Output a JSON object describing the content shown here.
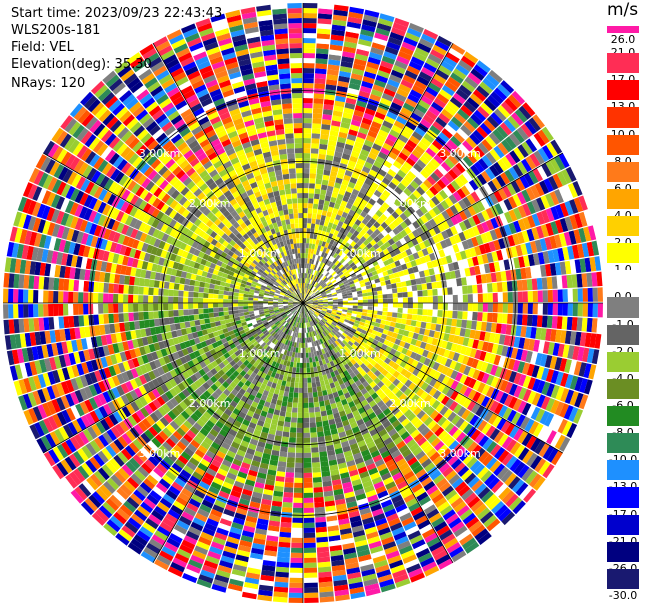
{
  "info": {
    "start_time": "Start time: 2023/09/23 22:43:43",
    "instrument": "WLS200s-181",
    "field": "Field: VEL",
    "elevation": "Elevation(deg): 35.30",
    "nrays": "NRays: 120"
  },
  "colorbar": {
    "unit": "m/s",
    "tick_labels": [
      "26.0",
      "21.0",
      "17.0",
      "13.0",
      "10.0",
      "8.0",
      "6.0",
      "4.0",
      "2.0",
      "1.0",
      "0.0",
      "-1.0",
      "-2.0",
      "-4.0",
      "-6.0",
      "-8.0",
      "-10.0",
      "-13.0",
      "-17.0",
      "-21.0",
      "-26.0",
      "-30.0"
    ],
    "colors": [
      "#ff1aa6",
      "#ff2d55",
      "#ff0000",
      "#ff3300",
      "#ff5500",
      "#ff7a1a",
      "#ffa500",
      "#ffd000",
      "#ffff00",
      "#ffffff",
      "#7f7f7f",
      "#646464",
      "#9acd32",
      "#6b8e23",
      "#228b22",
      "#2e8b57",
      "#1e90ff",
      "#0000ff",
      "#0000cd",
      "#000080",
      "#191970"
    ]
  },
  "chart_data": {
    "type": "heatmap",
    "projection": "polar-ppi",
    "field": "VEL",
    "units": "m/s",
    "nrays": 120,
    "range_rings_km": [
      1.0,
      2.0,
      3.0
    ],
    "ring_labels": [
      "1.00km",
      "2.00km",
      "3.00km"
    ],
    "max_range_km": 5.0,
    "grid": true,
    "value_range": [
      -30.0,
      26.0
    ]
  }
}
